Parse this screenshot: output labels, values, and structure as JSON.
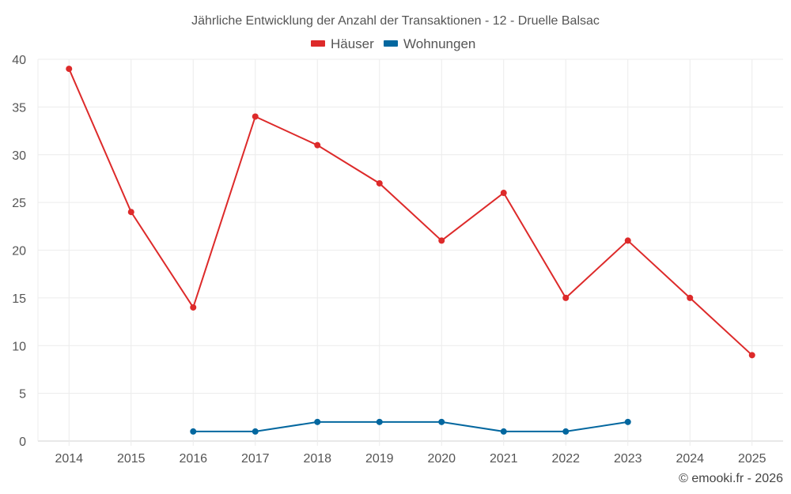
{
  "chart_data": {
    "type": "line",
    "title": "Jährliche Entwicklung der Anzahl der Transaktionen - 12 - Druelle Balsac",
    "xlabel": "",
    "ylabel": "",
    "categories": [
      "2014",
      "2015",
      "2016",
      "2017",
      "2018",
      "2019",
      "2020",
      "2021",
      "2022",
      "2023",
      "2024",
      "2025"
    ],
    "ylim": [
      0,
      40
    ],
    "yticks": [
      0,
      5,
      10,
      15,
      20,
      25,
      30,
      35,
      40
    ],
    "grid": true,
    "legend_position": "top-center",
    "series": [
      {
        "name": "Häuser",
        "color": "#dd2a2a",
        "values": [
          39,
          24,
          14,
          34,
          31,
          27,
          21,
          26,
          15,
          21,
          15,
          9
        ]
      },
      {
        "name": "Wohnungen",
        "color": "#03679f",
        "values": [
          null,
          null,
          1,
          1,
          2,
          2,
          2,
          1,
          1,
          2,
          null,
          null
        ]
      }
    ]
  },
  "credit": "© emooki.fr - 2026"
}
